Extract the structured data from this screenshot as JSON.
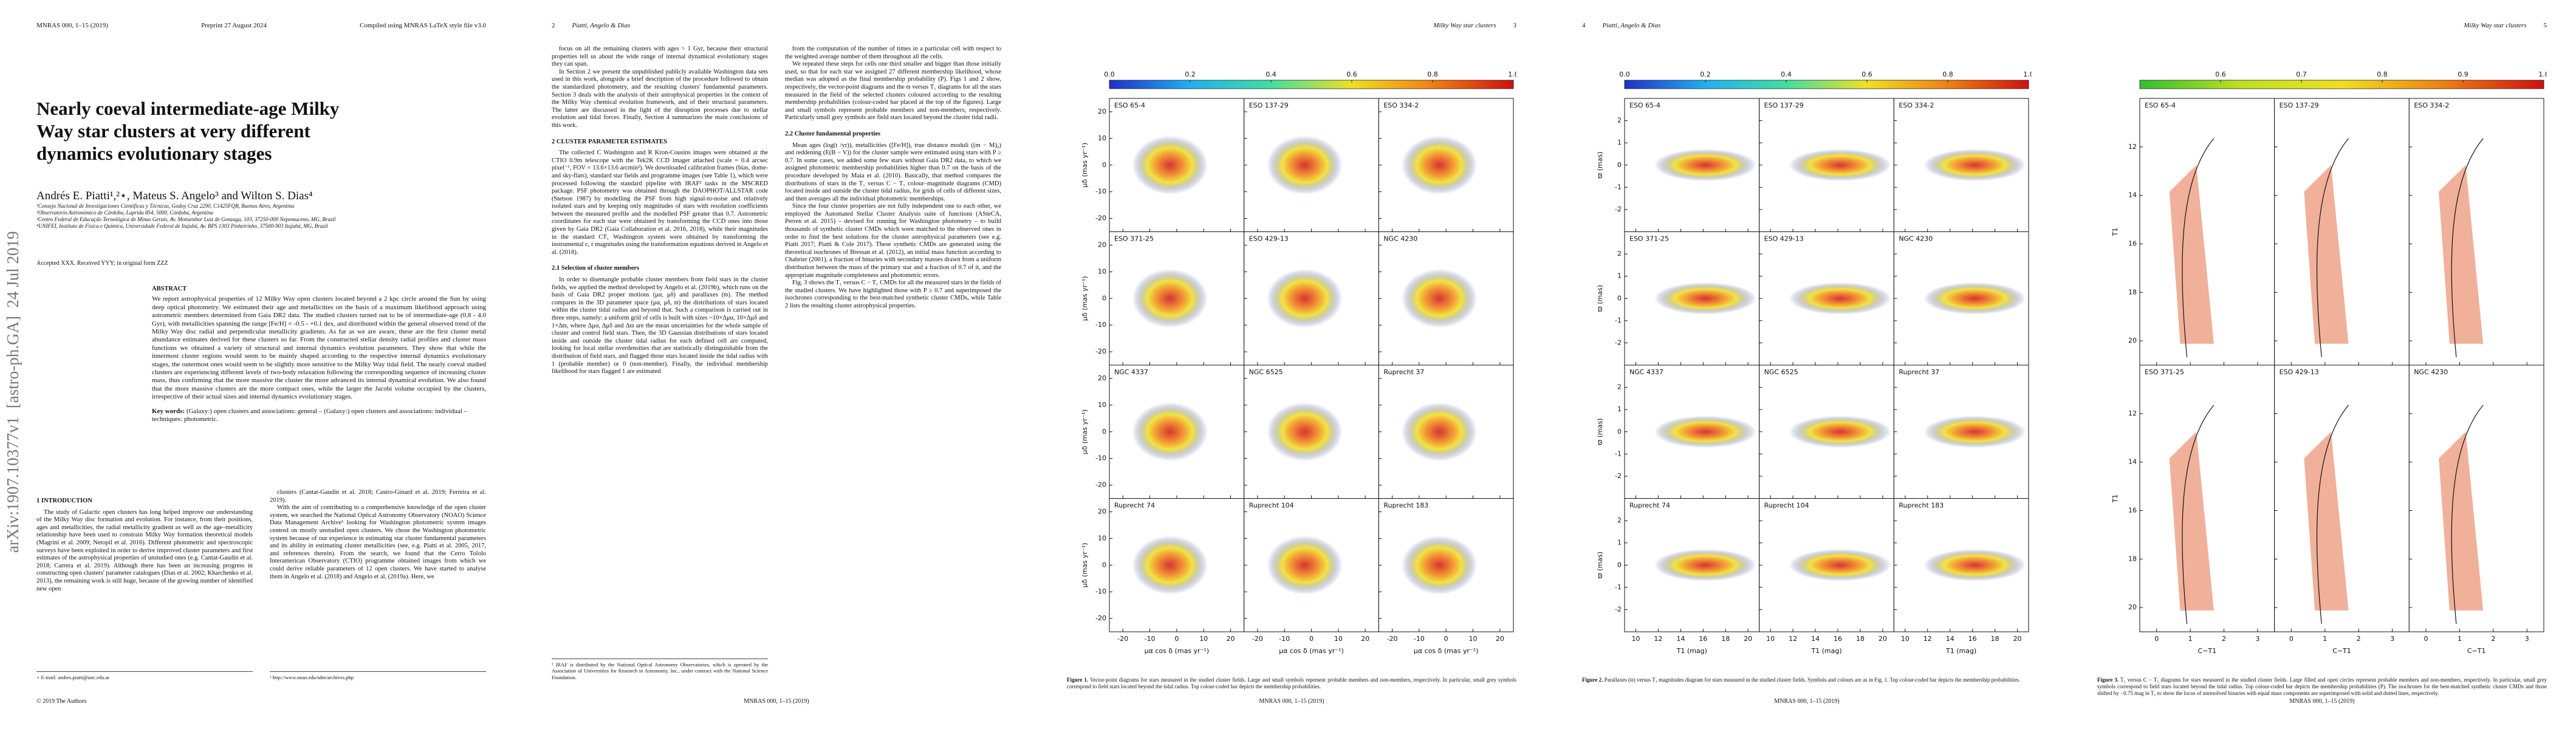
{
  "arxiv_id": "arXiv:1907.10377v1  [astro-ph.GA]  24 Jul 2019",
  "pages": [
    {
      "header_left": [
        "MNRAS 000, 1–15 (2019)",
        "Preprint 27 August 2024",
        "Compiled using MNRAS LaTeX style file v3.0"
      ],
      "title": "Nearly coeval intermediate-age Milky Way star clusters at very different dynamics evolutionary stages",
      "authors": "Andrés E. Piatti¹,²⋆, Mateus S. Angelo³ and Wilton S. Dias⁴",
      "affiliations": [
        "¹Consejo Nacional de Investigaciones Científicas y Técnicas, Godoy Cruz 2290, C1425FQB, Buenos Aires, Argentina",
        "²Observatorio Astronómico de Córdoba, Laprida 854, 5000, Córdoba, Argentina",
        "³Centro Federal de Educação Tecnológica de Minas Gerais, Av. Monsenhor Luiz de Gonzaga, 103, 37250-000 Nepomuceno, MG, Brazil",
        "⁴UNIFEI, Instituto de Física e Química, Universidade Federal de Itajubá, Av. BPS 1303 Pinheirinho, 37500-903 Itajubá, MG, Brazil"
      ],
      "received": "Accepted XXX. Received YYY; in original form ZZZ",
      "abstract": {
        "heading": "ABSTRACT",
        "text": "We report astrophysical properties of 12 Milky Way open clusters located beyond a 2 kpc circle around the Sun by using deep optical photometry. We estimated their age and metallicities on the basis of a maximum likelihood approach using astrometric members determined from Gaia DR2 data. The studied clusters turned out to be of intermediate-age (0.8 - 4.0 Gyr), with metallicities spanning the range [Fe/H] = -0.5 - +0.1 dex, and distributed within the general observed trend of the Milky Way disc radial and perpendicular metallicity gradients. As far as we are aware, these are the first cluster metal abundance estimates derived for these clusters so far. From the constructed stellar density radial profiles and cluster mass functions we obtained a variety of structural and internal dynamics evolution parameters. They show that while the innermost cluster regions would seem to be mainly shaped according to the respective internal dynamics evolutionary stages, the outermost ones would seem to be slightly more sensitive to the Milky Way tidal field. The nearly coeval studied clusters are experiencing different levels of two-body relaxation following the corresponding sequence of increasing cluster mass, thus confirming that the more massive the cluster the more advanced its internal dynamical evolution. We also found that the more massive clusters are the more compact ones, while the larger the Jacobi volume occupied by the clusters, irrespective of their actual sizes and internal dynamics evolutionary stages."
      },
      "keywords": {
        "label": "Key words:",
        "text": "(Galaxy:) open clusters and associations: general – (Galaxy:) open clusters and associations: individual – techniques: photometric."
      },
      "columns": [
        [
          {
            "heading": "1 INTRODUCTION"
          },
          {
            "text": "The study of Galactic open clusters has long helped improve our understanding of the Milky Way disc formation and evolution. For instance, from their positions, ages and metallicities, the radial metallicity gradient as well as the age–metallicity relationship have been used to constrain Milky Way formation theoretical models (Magrini et al. 2009; Netopil et al. 2016). Different photometric and spectroscopic surveys have been exploited in order to derive improved cluster parameters and first estimates of the astrophysical properties of unstudied ones (e.g. Cantat-Gaudin et al. 2018; Carrera et al. 2019). Although there has been an increasing progress in constructing open clusters' parameter catalogues (Dias et al. 2002; Kharchenko et al. 2013), the remaining work is still huge, because of the growing number of identified new open"
          }
        ],
        [
          {
            "text": "clusters (Cantat-Gaudin et al. 2018; Castro-Ginard et al. 2019; Ferreira et al. 2019)."
          },
          {
            "text": "With the aim of contributing to a comprehensive knowledge of the open cluster system, we searched the National Optical Astronomy Observatory (NOAO) Science Data Management Archive¹ looking for Washington photometric system images centred on mostly unstudied open clusters. We chose the Washington photometric system because of our experience in estimating star cluster fundamental parameters and its ability in estimating cluster metallicities (see, e.g. Piatti et al. 2005, 2017, and references therein). From the search, we found that the Cerro Tololo Interamerican Observatory (CTIO) programme obtained images from which we could derive reliable parameters of 12 open clusters. We have started to analyse them in Angelo et al. (2018) and Angelo et al. (2019a). Here, we"
          }
        ]
      ],
      "footnotes": [
        [
          "⋆ E-mail: andres.piatti@unc.edu.ar"
        ],
        [
          "¹ http://www.noao.edu/sdm/archives.php"
        ]
      ],
      "footer": "© 2019 The Authors"
    },
    {
      "header_left": [
        "2",
        "Piatti, Angelo & Dias"
      ],
      "columns": [
        [
          {
            "text": "focus on all the remaining clusters with ages > 1 Gyr, because their structural properties tell us about the wide range of internal dynamical evolutionary stages they can span."
          },
          {
            "text": "In Section 2 we present the unpublished publicly available Washington data sets used in this work, alongside a brief description of the procedure followed to obtain the standardized photometry, and the resulting clusters' fundamental parameters. Section 3 deals with the analysis of their astrophysical properties in the context of the Milky Way chemical evolution framework, and of their structural parameters. The latter are discussed in the light of the disruption processes due to stellar evolution and tidal forces. Finally, Section 4 summarizes the main conclusions of this work."
          },
          {
            "heading": "2 CLUSTER PARAMETER ESTIMATES"
          },
          {
            "text": "The collected C Washington and R Kron-Cousins images were obtained at the CTIO 0.9m telescope with the Tek2K CCD imager attached (scale = 0.4 arcsec pixel⁻¹, FOV = 13.6×13.6 arcmin²). We downloaded calibration frames (bias, dome- and sky-flats), standard star fields and programme images (see Table 1), which were processed following the standard pipeline with IRAF² tasks in the MSCRED package. PSF photometry was obtained through the DAOPHOT/ALLSTAR code (Stetson 1987) by modelling the PSF from high signal-to-noise and relatively isolated stars and by keeping only magnitudes of stars with resolution coefficients between the measured profile and the modelled PSF greater than 0.7. Astrometric coordinates for each star were obtained by transforming the CCD ones into those given by Gaia DR2 (Gaia Collaboration et al. 2016, 2018), while their magnitudes in the standard CT₁ Washington system were obtained by transforming the instrumental c, r magnitudes using the transformation equations derived in Angelo et al. (2018)."
          },
          {
            "heading": "2.1 Selection of cluster members"
          },
          {
            "text": "In order to disentangle probable cluster members from field stars in the cluster fields, we applied the method developed by Angelo et al. (2019b), which runs on the basis of Gaia DR2 proper motions (μα, μδ) and parallaxes (ϖ). The method compares in the 3D parameter space (μα, μδ, ϖ) the distributions of stars located within the cluster tidal radius and beyond that. Such a comparison is carried out in three steps, namely: a uniform grid of cells is built with sizes ~10×Δμα, 10×Δμδ and 1×Δϖ, where Δμα, Δμδ and Δϖ are the mean uncertainties for the whole sample of cluster and control field stars. Then, the 3D Gaussian distributions of stars located inside and outside the cluster tidal radius for each defined cell are computed, looking for local stellar overdensities that are statistically distinguishable from the distribution of field stars, and flagged those stars located inside the tidal radius with 1 (probable member) or 0 (non-member). Finally, the individual membership likelihood for stars flagged 1 are estimated"
          }
        ],
        [
          {
            "text": "from the computation of the number of times in a particular cell with respect to the weighted average number of them throughout all the cells."
          },
          {
            "text": "We repeated these steps for cells one third smaller and bigger than those initially used, so that for each star we assigned 27 different membership likelihood, whose median was adopted as the final membership probability (P). Figs 1 and 2 show, respectively, the vector-point diagrams and the ϖ versus T₁ diagrams for all the stars measured in the field of the selected clusters coloured according to the resulting membership probabilities (colour-coded bar placed at the top of the figures). Large and small symbols represent probable members and non-members, respectively. Particularly small grey symbols are field stars located beyond the cluster tidal radii."
          },
          {
            "heading": "2.2 Cluster fundamental properties"
          },
          {
            "text": "Mean ages (log(t /yr)), metallicities ([Fe/H]), true distance moduli ((m − M)₀) and reddening (E(B − V)) for the cluster sample were estimated using stars with P ≥ 0.7. In some cases, we added some few stars without Gaia DR2 data, to which we assigned photometric membership probabilities higher than 0.7 on the basis of the procedure developed by Maia et al. (2010). Basically, that method compares the distributions of stars in the T₁ versus C − T₁ colour–magnitude diagrams (CMD) located inside and outside the cluster tidal radius, for grids of cells of different sizes, and then averages all the individual photometric memberships."
          },
          {
            "text": "Since the four cluster properties are not fully independent one to each other, we employed the Automated Stellar Cluster Analysis suite of functions (ASteCA, Perren et al. 2015) – devised for running for Washington photometry – to build thousands of synthetic cluster CMDs which were matched to the observed ones in order to find the best solutions for the cluster astrophysical parameters (see e.g. Piatti 2017; Piatti & Cole 2017). These synthetic CMDs are generated using the theoretical isochrones of Bressan et al. (2012), an initial mass function according to Chabrier (2001), a fraction of binaries with secondary masses drawn from a uniform distribution between the mass of the primary star and a fraction of 0.7 of it, and the appropriate magnitude completeness and photometric errors."
          },
          {
            "text": "Fig. 3 shows the T₁ versus C − T₁ CMDs for all the measured stars in the fields of the studied clusters. We have highlighted those with P ≥ 0.7 and superimposed the isochrones corresponding to the best-matched synthetic cluster CMDs, while Table 2 lists the resulting cluster astrophysical properties."
          }
        ]
      ],
      "footnotes": [
        [
          "² IRAF is distributed by the National Optical Astronomy Observatories, which is operated by the Association of Universities for Research in Astronomy, Inc., under contract with the National Science Foundation."
        ],
        []
      ],
      "footer": "MNRAS 000, 1–15 (2019)"
    },
    {
      "header_right": [
        "Milky Way star clusters",
        "3"
      ],
      "figure": {
        "colorbar": {
          "colors": [
            "#2030c8",
            "#20b0f0",
            "#40e0a0",
            "#f0e020",
            "#f08010",
            "#d01010"
          ],
          "lim": [
            0,
            1
          ],
          "ticks": [
            {
              "value": 0,
              "label": "0.0"
            },
            0.2,
            0.4,
            0.6,
            0.8,
            {
              "value": 1,
              "label": "1.0"
            }
          ]
        },
        "panels": [
          "ESO 65-4",
          "ESO 137-29",
          "ESO 334-2",
          "ESO 371-25",
          "ESO 429-13",
          "NGC 4230",
          "NGC 4337",
          "NGC 6525",
          "Ruprecht 37",
          "Ruprecht 74",
          "Ruprecht 104",
          "Ruprecht 183"
        ],
        "xlabel": "μα cos δ (mas yr⁻¹)",
        "ylabel": "μδ (mas yr⁻¹)",
        "xlim": [
          -25,
          25
        ],
        "xticks": [
          -20,
          -10,
          0,
          10,
          20
        ],
        "ylim": [
          -25,
          25
        ],
        "yticks": [
          -20,
          -10,
          0,
          10,
          20
        ],
        "caption": {
          "label": "Figure 1.",
          "text": "Vector-point diagrams for stars measured in the studied cluster fields. Large and small symbols represent probable members and non-members, respectively. In particular, small grey symbols correspond to field stars located beyond the tidal radius. Top colour-coded bar depicts the membership probabilities."
        }
      },
      "footer": "MNRAS 000, 1–15 (2019)"
    },
    {
      "header_left": [
        "4",
        "Piatti, Angelo & Dias"
      ],
      "figure": {
        "colorbar": {
          "colors": [
            "#2030c8",
            "#20b0f0",
            "#40e0a0",
            "#f0e020",
            "#f08010",
            "#d01010"
          ],
          "lim": [
            0,
            1
          ],
          "ticks": [
            {
              "value": 0,
              "label": "0.0"
            },
            0.2,
            0.4,
            0.6,
            0.8,
            {
              "value": 1,
              "label": "1.0"
            }
          ]
        },
        "panels": [
          "ESO 65-4",
          "ESO 137-29",
          "ESO 334-2",
          "ESO 371-25",
          "ESO 429-13",
          "NGC 4230",
          "NGC 4337",
          "NGC 6525",
          "Ruprecht 37",
          "Ruprecht 74",
          "Ruprecht 104",
          "Ruprecht 183"
        ],
        "xlabel": "T1 (mag)",
        "ylabel": "ϖ (mas)",
        "xlim": [
          9,
          21
        ],
        "xticks": [
          10,
          12,
          14,
          16,
          18,
          20
        ],
        "ylim": [
          -3,
          3
        ],
        "yticks": [
          -2,
          -1,
          0,
          1,
          2
        ],
        "caption": {
          "label": "Figure 2.",
          "text": "Parallaxes (ϖ) versus T₁ magnitudes diagram for stars measured in the studied cluster fields. Symbols and colours are as in Fig. 1. Top colour-coded bar depicts the membership probabilities."
        }
      },
      "footer": "MNRAS 000, 1–15 (2019)"
    },
    {
      "header_right": [
        "Milky Way star clusters",
        "5"
      ],
      "figure": {
        "colorbar": {
          "colors": [
            "#30c030",
            "#c0e020",
            "#f0e020",
            "#f08010",
            "#d01010"
          ],
          "lim": [
            0.5,
            1
          ],
          "ticks": [
            0.6,
            0.7,
            0.8,
            0.9,
            {
              "value": 1,
              "label": "1.0"
            }
          ]
        },
        "panels": [
          "ESO 65-4",
          "ESO 137-29",
          "ESO 334-2",
          "ESO 371-25",
          "ESO 429-13",
          "NGC 4230"
        ],
        "xlabel": "C−T1",
        "ylabel": "T1",
        "xlim": [
          -0.5,
          3.5
        ],
        "xticks": [
          0,
          1,
          2,
          3
        ],
        "ylim": [
          21,
          10
        ],
        "yticks": [
          12,
          14,
          16,
          18,
          20
        ],
        "caption": {
          "label": "Figure 3.",
          "text": "T₁ versus C − T₁ diagrams for stars measured in the studied cluster fields. Large filled and open circles represent probable members and non-members, respectively. In particular, small grey symbols correspond to field stars located beyond the tidal radius. Top colour-coded bar depicts the membership probabilities (P). The isochrones for the best-matched synthetic cluster CMDs and those shifted by −0.75 mag in T₁ to show the locus of unresolved binaries with equal mass components are superimposed with solid and dotted lines, respectively."
        }
      },
      "footer": "MNRAS 000, 1–15 (2019)"
    }
  ]
}
